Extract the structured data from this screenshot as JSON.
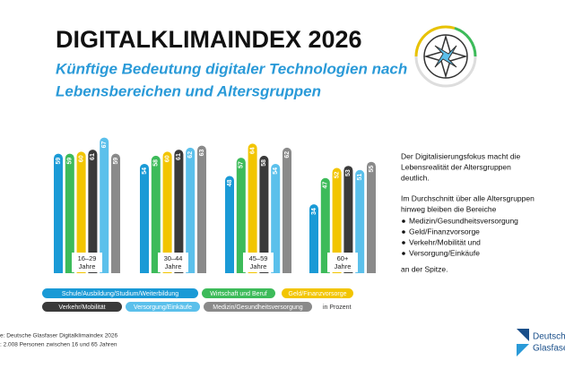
{
  "header": {
    "title": "DIGITALKLIMAINDEX 2026",
    "subtitle": [
      "Künftige Bedeutung digitaler Technologien nach",
      "Lebensbereichen und Altersgruppen"
    ]
  },
  "chart_data": {
    "type": "bar",
    "categories": [
      "16–29\nJahre",
      "30–44\nJahre",
      "45–59\nJahre",
      "60+\nJahre"
    ],
    "series": [
      {
        "name": "Schule/Ausbildung/Studium/Weiterbildung",
        "color": "#1a9ad6",
        "values": [
          59,
          54,
          48,
          34
        ]
      },
      {
        "name": "Wirtschaft und Beruf",
        "color": "#3dbb5a",
        "values": [
          59,
          58,
          57,
          47
        ]
      },
      {
        "name": "Geld/Finanzvorsorge",
        "color": "#f2c500",
        "values": [
          60,
          60,
          64,
          52
        ]
      },
      {
        "name": "Verkehr/Mobilität",
        "color": "#3a3a3a",
        "values": [
          61,
          61,
          58,
          53
        ]
      },
      {
        "name": "Versorgung/Einkäufe",
        "color": "#5bc0eb",
        "values": [
          67,
          62,
          54,
          51
        ]
      },
      {
        "name": "Medizin/Gesundheitsversorgung",
        "color": "#8a8a8a",
        "values": [
          59,
          63,
          62,
          55
        ]
      }
    ],
    "unit_note": "in Prozent"
  },
  "side_text": [
    "Der Digitalisierungsfokus macht die",
    "Lebensrealität der Altersgruppen",
    "deutlich.",
    "Im Durchschnitt über alle Altersgruppen",
    "hinweg bleiben die Bereiche",
    "an der Spitze."
  ],
  "side_list": [
    "Medizin/Gesundheitsversorgung",
    "Geld/Finanzvorsorge",
    "Verkehr/Mobilität und",
    "Versorgung/Einkäufe"
  ],
  "footer": [
    "e: Deutsche Glasfaser Digitalklimaindex 2026",
    ": 2.008 Personen zwischen 16 und 65 Jahren",
    "Deutsche",
    "Glasfaser"
  ]
}
